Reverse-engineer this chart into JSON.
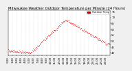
{
  "title": "Milwaukee Weather Outdoor Temperature",
  "title2": "per Minute",
  "title3": "(24 Hours)",
  "background_color": "#f0f0f0",
  "plot_bg": "#ffffff",
  "line_color": "#dd0000",
  "ylim": [
    38,
    76
  ],
  "yticks": [
    40,
    45,
    50,
    55,
    60,
    65,
    70,
    75
  ],
  "ytick_labels": [
    "40",
    "45",
    "50",
    "55",
    "60",
    "65",
    "70",
    "75"
  ],
  "legend_label": "Outdoor Temp",
  "legend_color": "#cc0000",
  "grid_linestyle": ":",
  "grid_color": "#bbbbbb",
  "num_points": 1440,
  "temp_start": 42,
  "temp_early_min": 40,
  "temp_peak": 68,
  "temp_peak_time": 0.56,
  "temp_end": 46,
  "title_fontsize": 3.8,
  "tick_fontsize": 2.8,
  "legend_fontsize": 2.5,
  "xtick_labels": [
    "0:00",
    "1:00",
    "2:00",
    "3:00",
    "4:00",
    "5:00",
    "6:00",
    "7:00",
    "8:00",
    "9:00",
    "10:00",
    "11:00",
    "12:00",
    "13:00",
    "14:00",
    "15:00",
    "16:00",
    "17:00",
    "18:00",
    "19:00",
    "20:00",
    "21:00",
    "22:00",
    "23:00"
  ],
  "xtick_positions": [
    0,
    60,
    120,
    180,
    240,
    300,
    360,
    420,
    480,
    540,
    600,
    660,
    720,
    780,
    840,
    900,
    960,
    1020,
    1080,
    1140,
    1200,
    1260,
    1320,
    1380
  ],
  "vline_positions": [
    360
  ],
  "marker_size": 0.8,
  "sample_every": 5
}
